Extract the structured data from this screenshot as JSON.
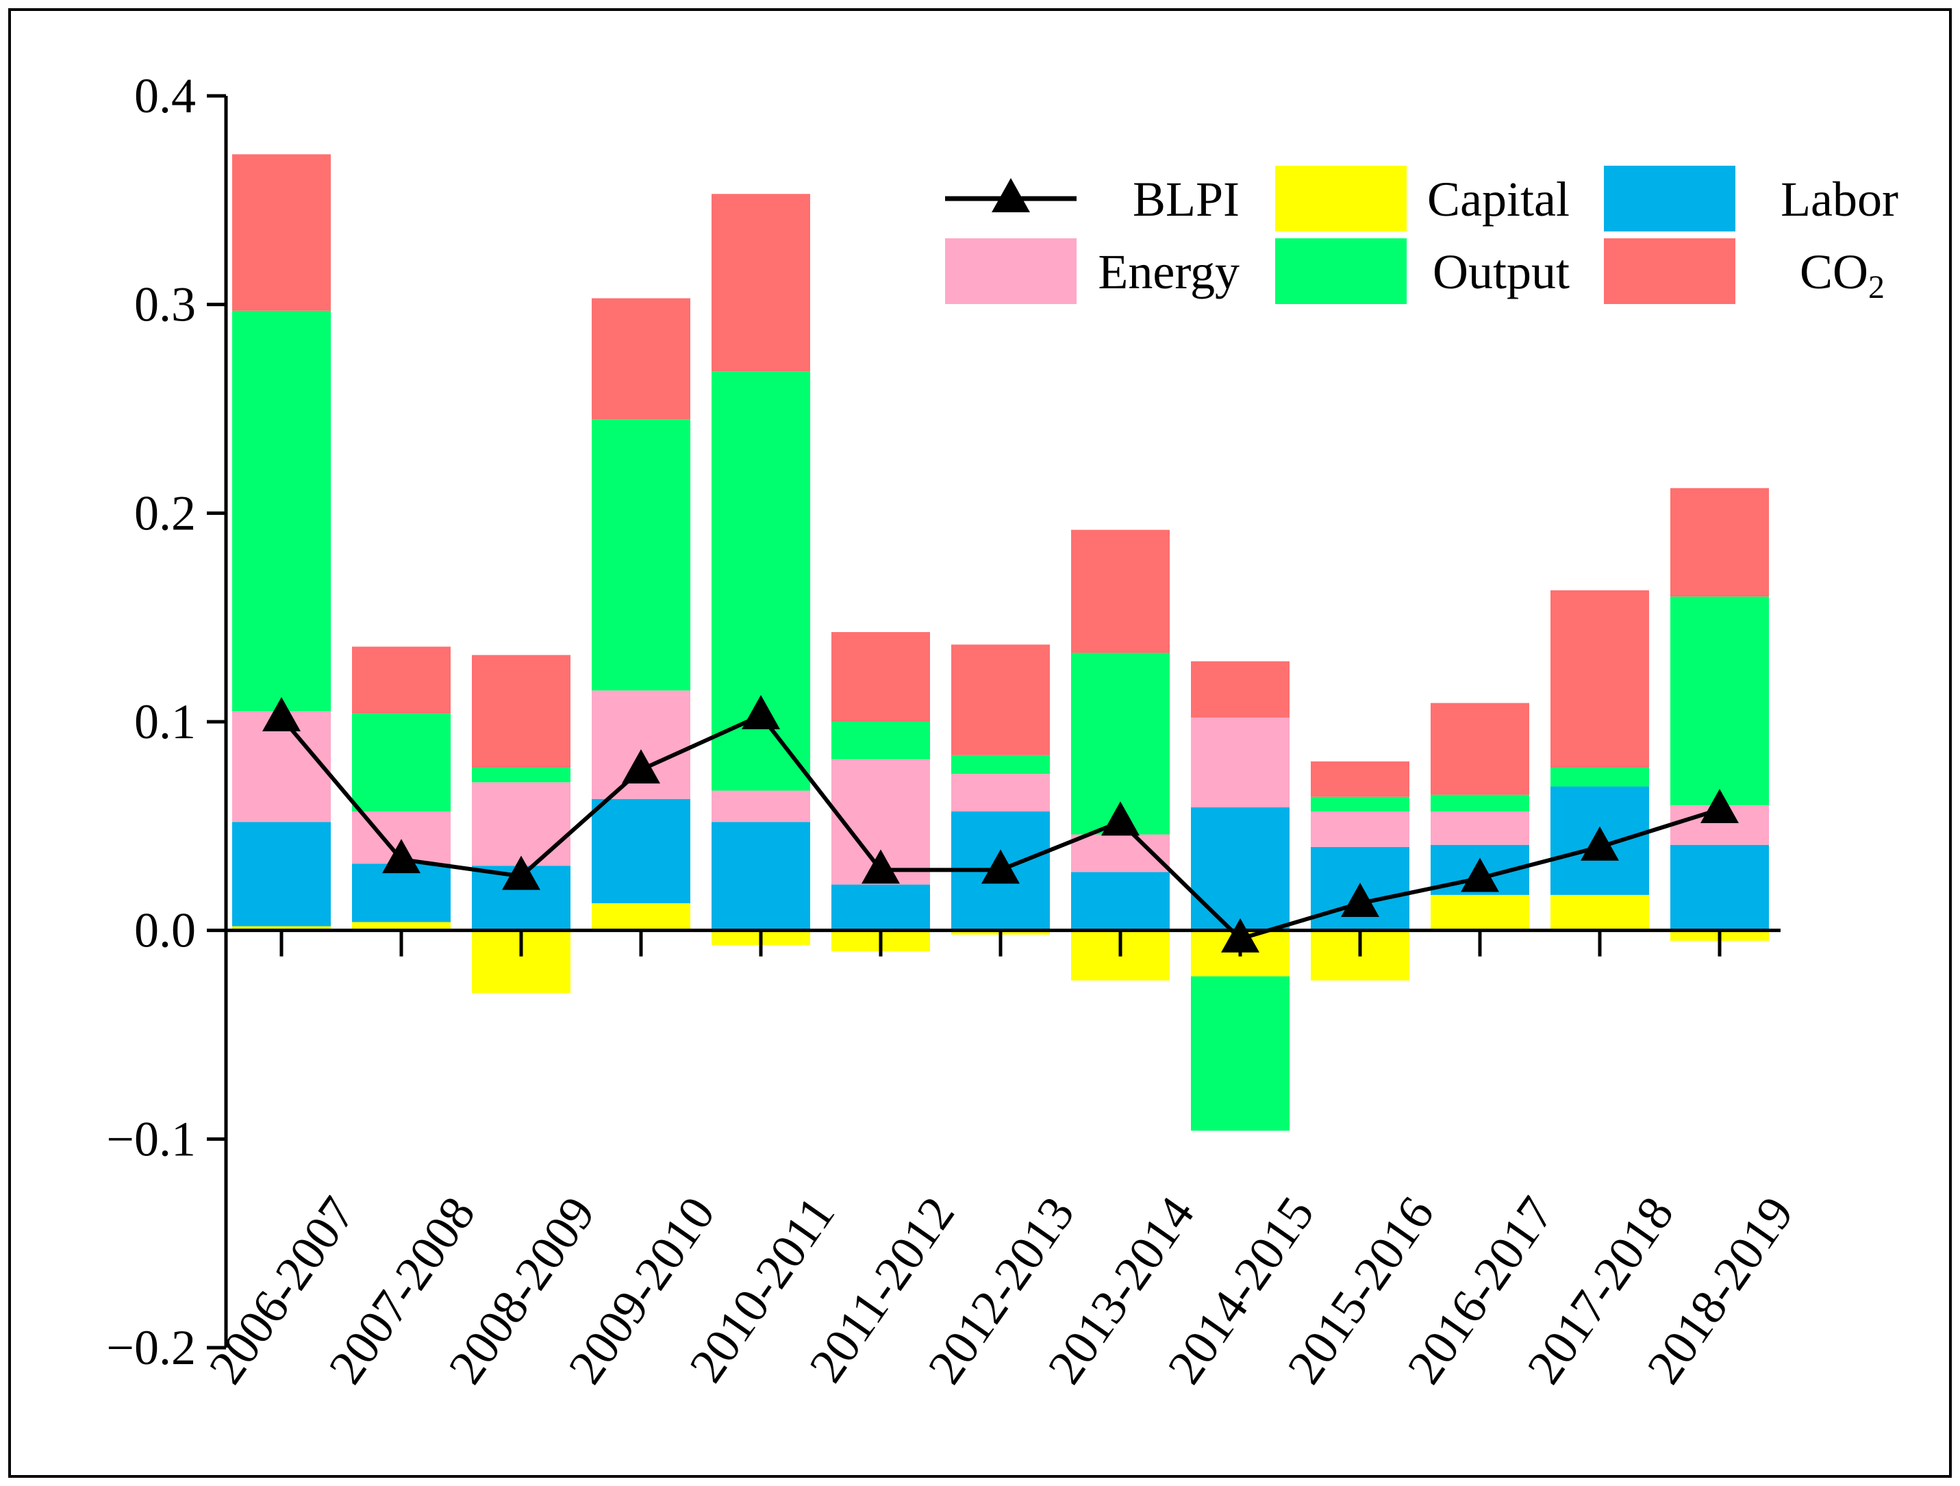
{
  "chart_data": {
    "type": "bar",
    "stacked": true,
    "title": "",
    "xlabel": "",
    "ylabel": "",
    "ylim": [
      -0.2,
      0.4
    ],
    "yticks": [
      "0.4",
      "0.3",
      "0.2",
      "0.1",
      "0.0",
      "−0.1",
      "−0.2"
    ],
    "ytick_values": [
      0.4,
      0.3,
      0.2,
      0.1,
      0.0,
      -0.1,
      -0.2
    ],
    "categories": [
      "2006-2007",
      "2007-2008",
      "2008-2009",
      "2009-2010",
      "2010-2011",
      "2011-2012",
      "2012-2013",
      "2013-2014",
      "2014-2015",
      "2015-2016",
      "2016-2017",
      "2017-2018",
      "2018-2019"
    ],
    "series": [
      {
        "name": "Capital",
        "color": "#FFFF00",
        "values": [
          0.002,
          0.004,
          -0.03,
          0.013,
          -0.007,
          -0.01,
          -0.002,
          -0.024,
          -0.022,
          -0.024,
          0.017,
          0.017,
          -0.005
        ]
      },
      {
        "name": "Labor",
        "color": "#00B0E8",
        "values": [
          0.05,
          0.028,
          0.031,
          0.05,
          0.052,
          0.022,
          0.057,
          0.028,
          0.059,
          0.04,
          0.024,
          0.052,
          0.041
        ]
      },
      {
        "name": "Energy",
        "color": "#FFA8C8",
        "values": [
          0.053,
          0.025,
          0.04,
          0.052,
          0.015,
          0.06,
          0.018,
          0.018,
          0.043,
          0.017,
          0.016,
          0.0,
          0.019
        ]
      },
      {
        "name": "Output",
        "color": "#00FF6E",
        "values": [
          0.192,
          0.047,
          0.007,
          0.13,
          0.201,
          0.018,
          0.009,
          0.087,
          -0.074,
          0.007,
          0.008,
          0.009,
          0.1
        ]
      },
      {
        "name": "CO₂",
        "color": "#FF7070",
        "values": [
          0.075,
          0.032,
          0.054,
          0.058,
          0.085,
          0.043,
          0.053,
          0.059,
          0.027,
          0.017,
          0.044,
          0.085,
          0.052
        ]
      }
    ],
    "line": {
      "name": "BLPI",
      "color": "#000000",
      "marker": "triangle",
      "values": [
        0.102,
        0.034,
        0.026,
        0.077,
        0.103,
        0.029,
        0.029,
        0.052,
        -0.004,
        0.013,
        0.025,
        0.04,
        0.058
      ]
    },
    "legend": {
      "position": "top-right",
      "entries": [
        {
          "label": "BLPI",
          "kind": "line",
          "color": "#000000"
        },
        {
          "label": "Capital",
          "kind": "box",
          "color": "#FFFF00"
        },
        {
          "label": "Labor",
          "kind": "box",
          "color": "#00B0E8"
        },
        {
          "label": "Energy",
          "kind": "box",
          "color": "#FFA8C8"
        },
        {
          "label": "Output",
          "kind": "box",
          "color": "#00FF6E"
        },
        {
          "label": "CO",
          "sub": "2",
          "kind": "box",
          "color": "#FF7070"
        }
      ]
    },
    "grid": false
  }
}
